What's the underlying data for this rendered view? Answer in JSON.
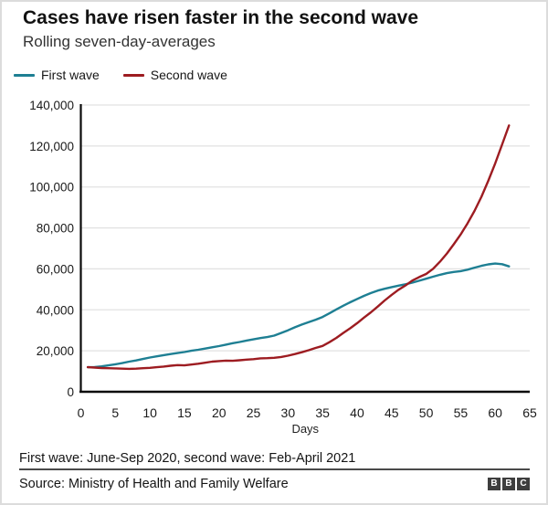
{
  "header": {
    "title": "Cases have risen faster in the second wave",
    "subtitle": "Rolling seven-day-averages"
  },
  "legend": {
    "items": [
      {
        "label": "First wave",
        "color": "#1e7f93"
      },
      {
        "label": "Second wave",
        "color": "#9d1c21"
      }
    ]
  },
  "chart_data": {
    "type": "line",
    "title": "Cases have risen faster in the second wave",
    "subtitle": "Rolling seven-day-averages",
    "xlabel": "Days",
    "ylabel": "",
    "xlim": [
      0,
      65
    ],
    "ylim": [
      0,
      140000
    ],
    "xticks": [
      0,
      5,
      10,
      15,
      20,
      25,
      30,
      35,
      40,
      45,
      50,
      55,
      60,
      65
    ],
    "yticks": [
      0,
      20000,
      40000,
      60000,
      80000,
      100000,
      120000,
      140000
    ],
    "grid": "horizontal",
    "legend_position": "top-left",
    "x_start_day": 1,
    "series": [
      {
        "name": "First wave",
        "color": "#1e7f93",
        "values": [
          12000,
          12100,
          12400,
          12900,
          13400,
          14000,
          14700,
          15300,
          16000,
          16700,
          17300,
          17900,
          18400,
          18900,
          19400,
          20000,
          20500,
          21100,
          21700,
          22300,
          23000,
          23700,
          24300,
          25000,
          25600,
          26200,
          26700,
          27400,
          28700,
          30000,
          31500,
          32800,
          34000,
          35200,
          36500,
          38300,
          40200,
          42000,
          43700,
          45300,
          46800,
          48200,
          49400,
          50300,
          51100,
          51800,
          52500,
          53300,
          54200,
          55200,
          56200,
          57100,
          57900,
          58500,
          58900,
          59600,
          60600,
          61500,
          62200,
          62600,
          62300,
          61200
        ]
      },
      {
        "name": "Second wave",
        "color": "#9d1c21",
        "values": [
          12000,
          11800,
          11600,
          11500,
          11400,
          11300,
          11200,
          11300,
          11500,
          11700,
          12000,
          12300,
          12700,
          13000,
          12900,
          13300,
          13700,
          14200,
          14700,
          15000,
          15200,
          15100,
          15400,
          15700,
          15900,
          16300,
          16400,
          16600,
          17000,
          17600,
          18400,
          19300,
          20300,
          21400,
          22400,
          24200,
          26300,
          28700,
          31000,
          33500,
          36200,
          38800,
          41600,
          44600,
          47300,
          49800,
          51900,
          54300,
          56000,
          57500,
          60000,
          63500,
          67500,
          72000,
          76800,
          82200,
          88300,
          95200,
          103000,
          111500,
          120800,
          130000
        ]
      }
    ]
  },
  "footer": {
    "note": "First wave: June-Sep 2020, second wave: Feb-April 2021",
    "source": "Source: Ministry of Health and Family Welfare",
    "logo_letters": [
      "B",
      "B",
      "C"
    ]
  }
}
